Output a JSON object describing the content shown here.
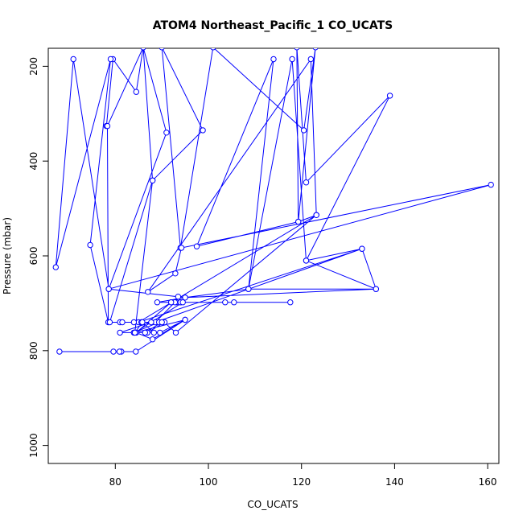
{
  "chart_data": {
    "type": "line",
    "title": "ATOM4 Northeast_Pacific_1 CO_UCATS",
    "xlabel": "CO_UCATS",
    "ylabel": "Pressure (mbar)",
    "xlim": [
      65.6,
      162.4
    ],
    "ylim": [
      1038,
      162
    ],
    "y_reversed": true,
    "xticks": [
      80,
      100,
      120,
      140,
      160
    ],
    "yticks": [
      200,
      400,
      600,
      800,
      1000
    ],
    "grid": false,
    "line_color": "#0000ff",
    "marker": "open-circle",
    "series": [
      {
        "points": [
          [
            78.1,
            326
          ],
          [
            79.5,
            185
          ],
          [
            84.5,
            254
          ],
          [
            86.0,
            160
          ],
          [
            78.3,
            326
          ],
          [
            78.5,
            740
          ],
          [
            74.6,
            577
          ],
          [
            79.0,
            185
          ],
          [
            67.2,
            624
          ],
          [
            71.0,
            185
          ],
          [
            78.6,
            670
          ],
          [
            91.0,
            340
          ],
          [
            86.0,
            160
          ],
          [
            88.0,
            441
          ],
          [
            98.8,
            335
          ],
          [
            90.0,
            160
          ],
          [
            94.0,
            583
          ],
          [
            101.0,
            160
          ],
          [
            120.5,
            335
          ],
          [
            123.0,
            160
          ],
          [
            119.3,
            528
          ],
          [
            119.0,
            160
          ],
          [
            121.0,
            445
          ],
          [
            139.0,
            262
          ],
          [
            121.0,
            610
          ],
          [
            133.0,
            585
          ],
          [
            136.0,
            670
          ],
          [
            121.0,
            610
          ],
          [
            118.0,
            185
          ],
          [
            108.6,
            670
          ],
          [
            114.0,
            185
          ],
          [
            97.5,
            580
          ],
          [
            119.3,
            528
          ],
          [
            123.2,
            514
          ],
          [
            122.0,
            185
          ],
          [
            87.0,
            676
          ],
          [
            92.9,
            637
          ],
          [
            94.2,
            583
          ],
          [
            160.7,
            450
          ],
          [
            78.6,
            670
          ],
          [
            95.0,
            688
          ],
          [
            136.0,
            670
          ],
          [
            108.6,
            670
          ],
          [
            95.0,
            688
          ],
          [
            89.0,
            698
          ],
          [
            117.6,
            698
          ],
          [
            105.5,
            698
          ],
          [
            103.6,
            698
          ],
          [
            94.0,
            698
          ],
          [
            92.0,
            698
          ],
          [
            93.1,
            698
          ],
          [
            93.5,
            686
          ],
          [
            94.0,
            698
          ],
          [
            92.8,
            698
          ],
          [
            88.6,
            740
          ],
          [
            133.0,
            585
          ],
          [
            85.0,
            740
          ],
          [
            123.2,
            514
          ],
          [
            93.0,
            762
          ],
          [
            90.5,
            740
          ],
          [
            88.6,
            740
          ],
          [
            81.0,
            740
          ],
          [
            85.7,
            740
          ],
          [
            89.4,
            740
          ],
          [
            84.0,
            762
          ],
          [
            81.0,
            762
          ],
          [
            87.7,
            740
          ],
          [
            90.6,
            740
          ],
          [
            86.9,
            762
          ],
          [
            89.6,
            762
          ],
          [
            95.0,
            735
          ],
          [
            88.0,
            776
          ],
          [
            84.5,
            762
          ],
          [
            92.0,
            698
          ],
          [
            94.5,
            698
          ],
          [
            84.2,
            762
          ],
          [
            88.0,
            441
          ],
          [
            78.8,
            740
          ],
          [
            85.6,
            740
          ],
          [
            84.0,
            740
          ],
          [
            81.5,
            740
          ],
          [
            90.0,
            740
          ],
          [
            86.4,
            762
          ],
          [
            84.0,
            762
          ],
          [
            88.3,
            762
          ],
          [
            85.8,
            740
          ],
          [
            84.2,
            762
          ],
          [
            95.0,
            735
          ],
          [
            84.4,
            802
          ],
          [
            81.3,
            802
          ],
          [
            80.9,
            802
          ],
          [
            79.6,
            802
          ],
          [
            68.0,
            802
          ]
        ]
      }
    ]
  }
}
